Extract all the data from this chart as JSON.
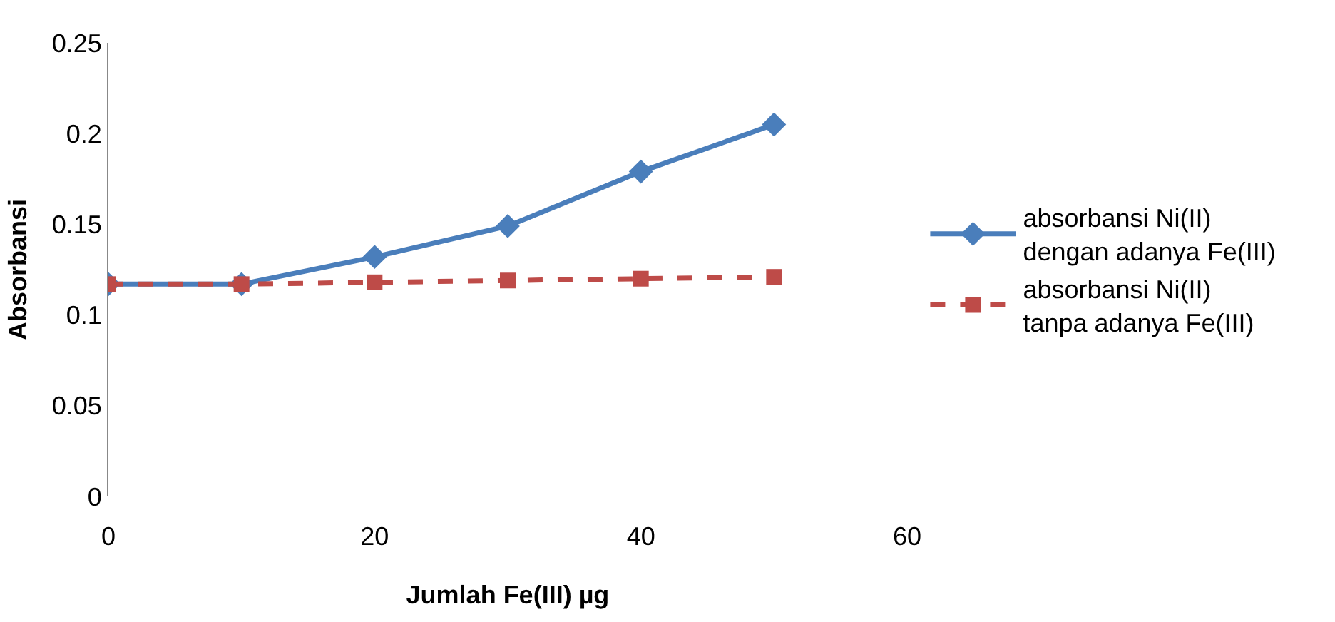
{
  "chart_data": {
    "type": "line",
    "xlabel": "Jumlah Fe(III) µg",
    "ylabel": "Absorbansi",
    "x": [
      0,
      10,
      20,
      30,
      40,
      50
    ],
    "series": [
      {
        "name": "absorbansi Ni(II) dengan adanya Fe(III)",
        "color": "#4a7ebb",
        "marker": "diamond",
        "line_style": "solid",
        "values": [
          0.117,
          0.117,
          0.132,
          0.149,
          0.179,
          0.205
        ]
      },
      {
        "name": "absorbansi Ni(II) tanpa adanya Fe(III)",
        "color": "#be4b48",
        "marker": "square",
        "line_style": "dashed",
        "values": [
          0.117,
          0.117,
          0.118,
          0.119,
          0.12,
          0.121
        ]
      }
    ],
    "xlim": [
      0,
      60
    ],
    "xticks": [
      0,
      20,
      40,
      60
    ],
    "ylim": [
      0,
      0.25
    ],
    "yticks": [
      0,
      0.05,
      0.1,
      0.15,
      0.2,
      0.25
    ],
    "grid": false,
    "legend": "right"
  }
}
